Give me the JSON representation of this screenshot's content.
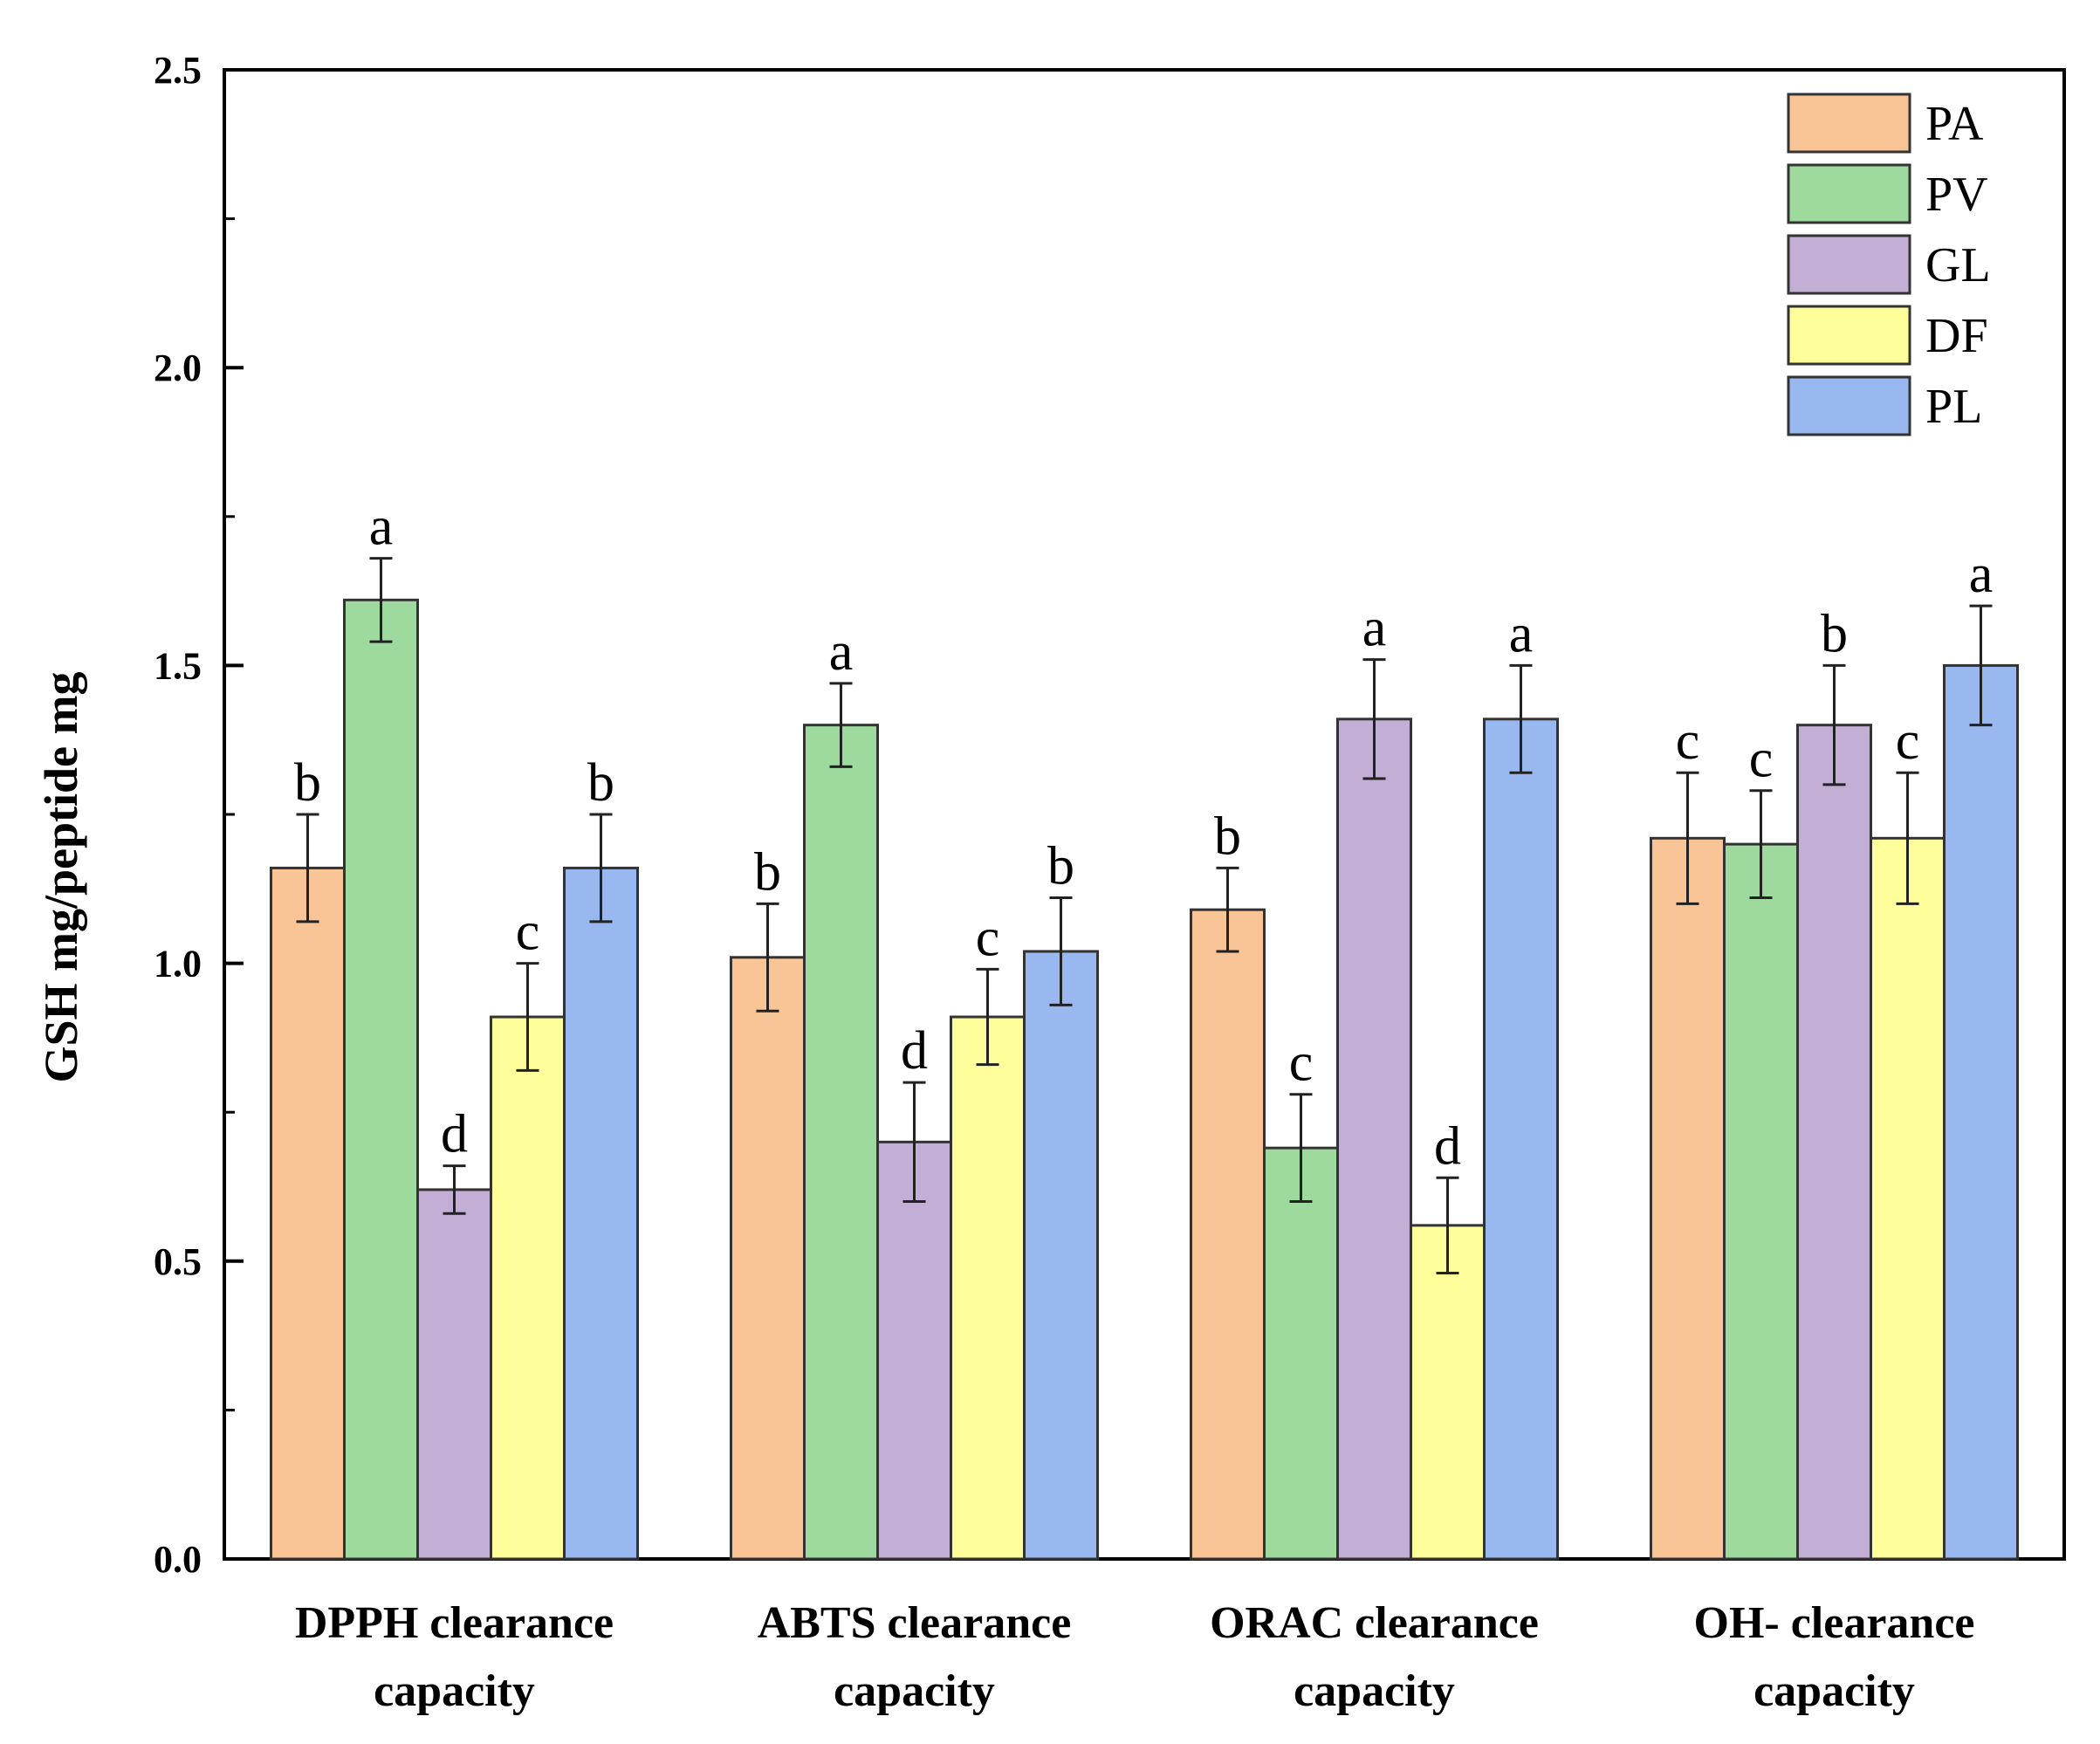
{
  "chart_data": {
    "type": "bar",
    "title": "",
    "xlabel": "",
    "ylabel": "GSH mg/peptide mg",
    "ylim": [
      0,
      2.5
    ],
    "yticks": [
      "0.0",
      "0.5",
      "1.0",
      "1.5",
      "2.0",
      "2.5"
    ],
    "categories": [
      [
        "DPPH clearance",
        "capacity"
      ],
      [
        "ABTS clearance",
        "capacity"
      ],
      [
        "ORAC clearance",
        "capacity"
      ],
      [
        "OH- clearance",
        "capacity"
      ]
    ],
    "legend_position": "top-right",
    "series": [
      {
        "name": "PA",
        "color": "#F9C496",
        "values": [
          1.16,
          1.01,
          1.09,
          1.21
        ],
        "errors": [
          0.09,
          0.09,
          0.07,
          0.11
        ],
        "letters": [
          "b",
          "b",
          "b",
          "c"
        ]
      },
      {
        "name": "PV",
        "color": "#9ED99E",
        "values": [
          1.61,
          1.4,
          0.69,
          1.2
        ],
        "errors": [
          0.07,
          0.07,
          0.09,
          0.09
        ],
        "letters": [
          "a",
          "a",
          "c",
          "c"
        ]
      },
      {
        "name": "GL",
        "color": "#C3AED6",
        "values": [
          0.62,
          0.7,
          1.41,
          1.4
        ],
        "errors": [
          0.04,
          0.1,
          0.1,
          0.1
        ],
        "letters": [
          "d",
          "d",
          "a",
          "b"
        ]
      },
      {
        "name": "DF",
        "color": "#FEFE9A",
        "values": [
          0.91,
          0.91,
          0.56,
          1.21
        ],
        "errors": [
          0.09,
          0.08,
          0.08,
          0.11
        ],
        "letters": [
          "c",
          "c",
          "d",
          "c"
        ]
      },
      {
        "name": "PL",
        "color": "#99B8F0",
        "values": [
          1.16,
          1.02,
          1.41,
          1.5
        ],
        "errors": [
          0.09,
          0.09,
          0.09,
          0.1
        ],
        "letters": [
          "b",
          "b",
          "a",
          "a"
        ]
      }
    ]
  }
}
